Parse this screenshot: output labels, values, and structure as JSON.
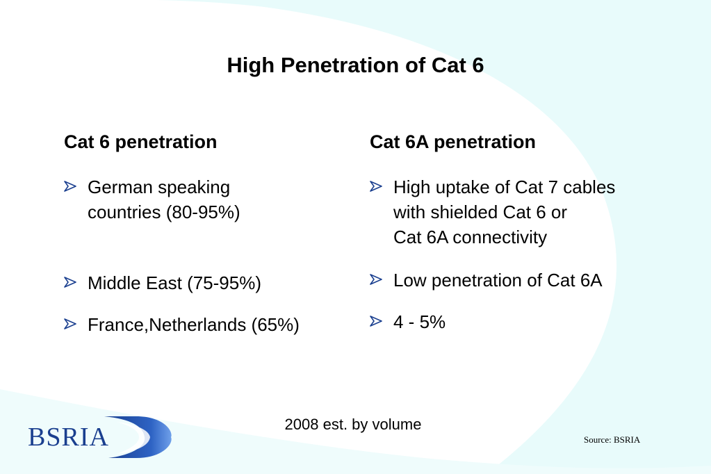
{
  "slide": {
    "title": "High Penetration of Cat 6",
    "left_column": {
      "heading": "Cat 6 penetration",
      "bullets": [
        {
          "lines": [
            "German speaking",
            "countries (80-95%)"
          ]
        },
        {
          "lines": [
            "Middle East (75-95%)"
          ]
        },
        {
          "lines": [
            "France,Netherlands (65%)"
          ]
        }
      ]
    },
    "right_column": {
      "heading": "Cat 6A penetration",
      "bullets": [
        {
          "lines": [
            "High uptake of Cat 7 cables",
            "with shielded Cat 6 or",
            "Cat 6A connectivity"
          ]
        },
        {
          "lines": [
            "Low penetration of Cat 6A"
          ]
        },
        {
          "lines": [
            "4 - 5%"
          ]
        }
      ]
    },
    "footnote": "2008 est. by volume",
    "source": "Source: BSRIA",
    "logo": {
      "text": "BSRIA",
      "color": "#1a3f8f"
    },
    "bullet_icon": "arrow-bullet-icon",
    "colors": {
      "accent": "#1a3f8f",
      "background_swirl": "#e6fafa"
    }
  }
}
